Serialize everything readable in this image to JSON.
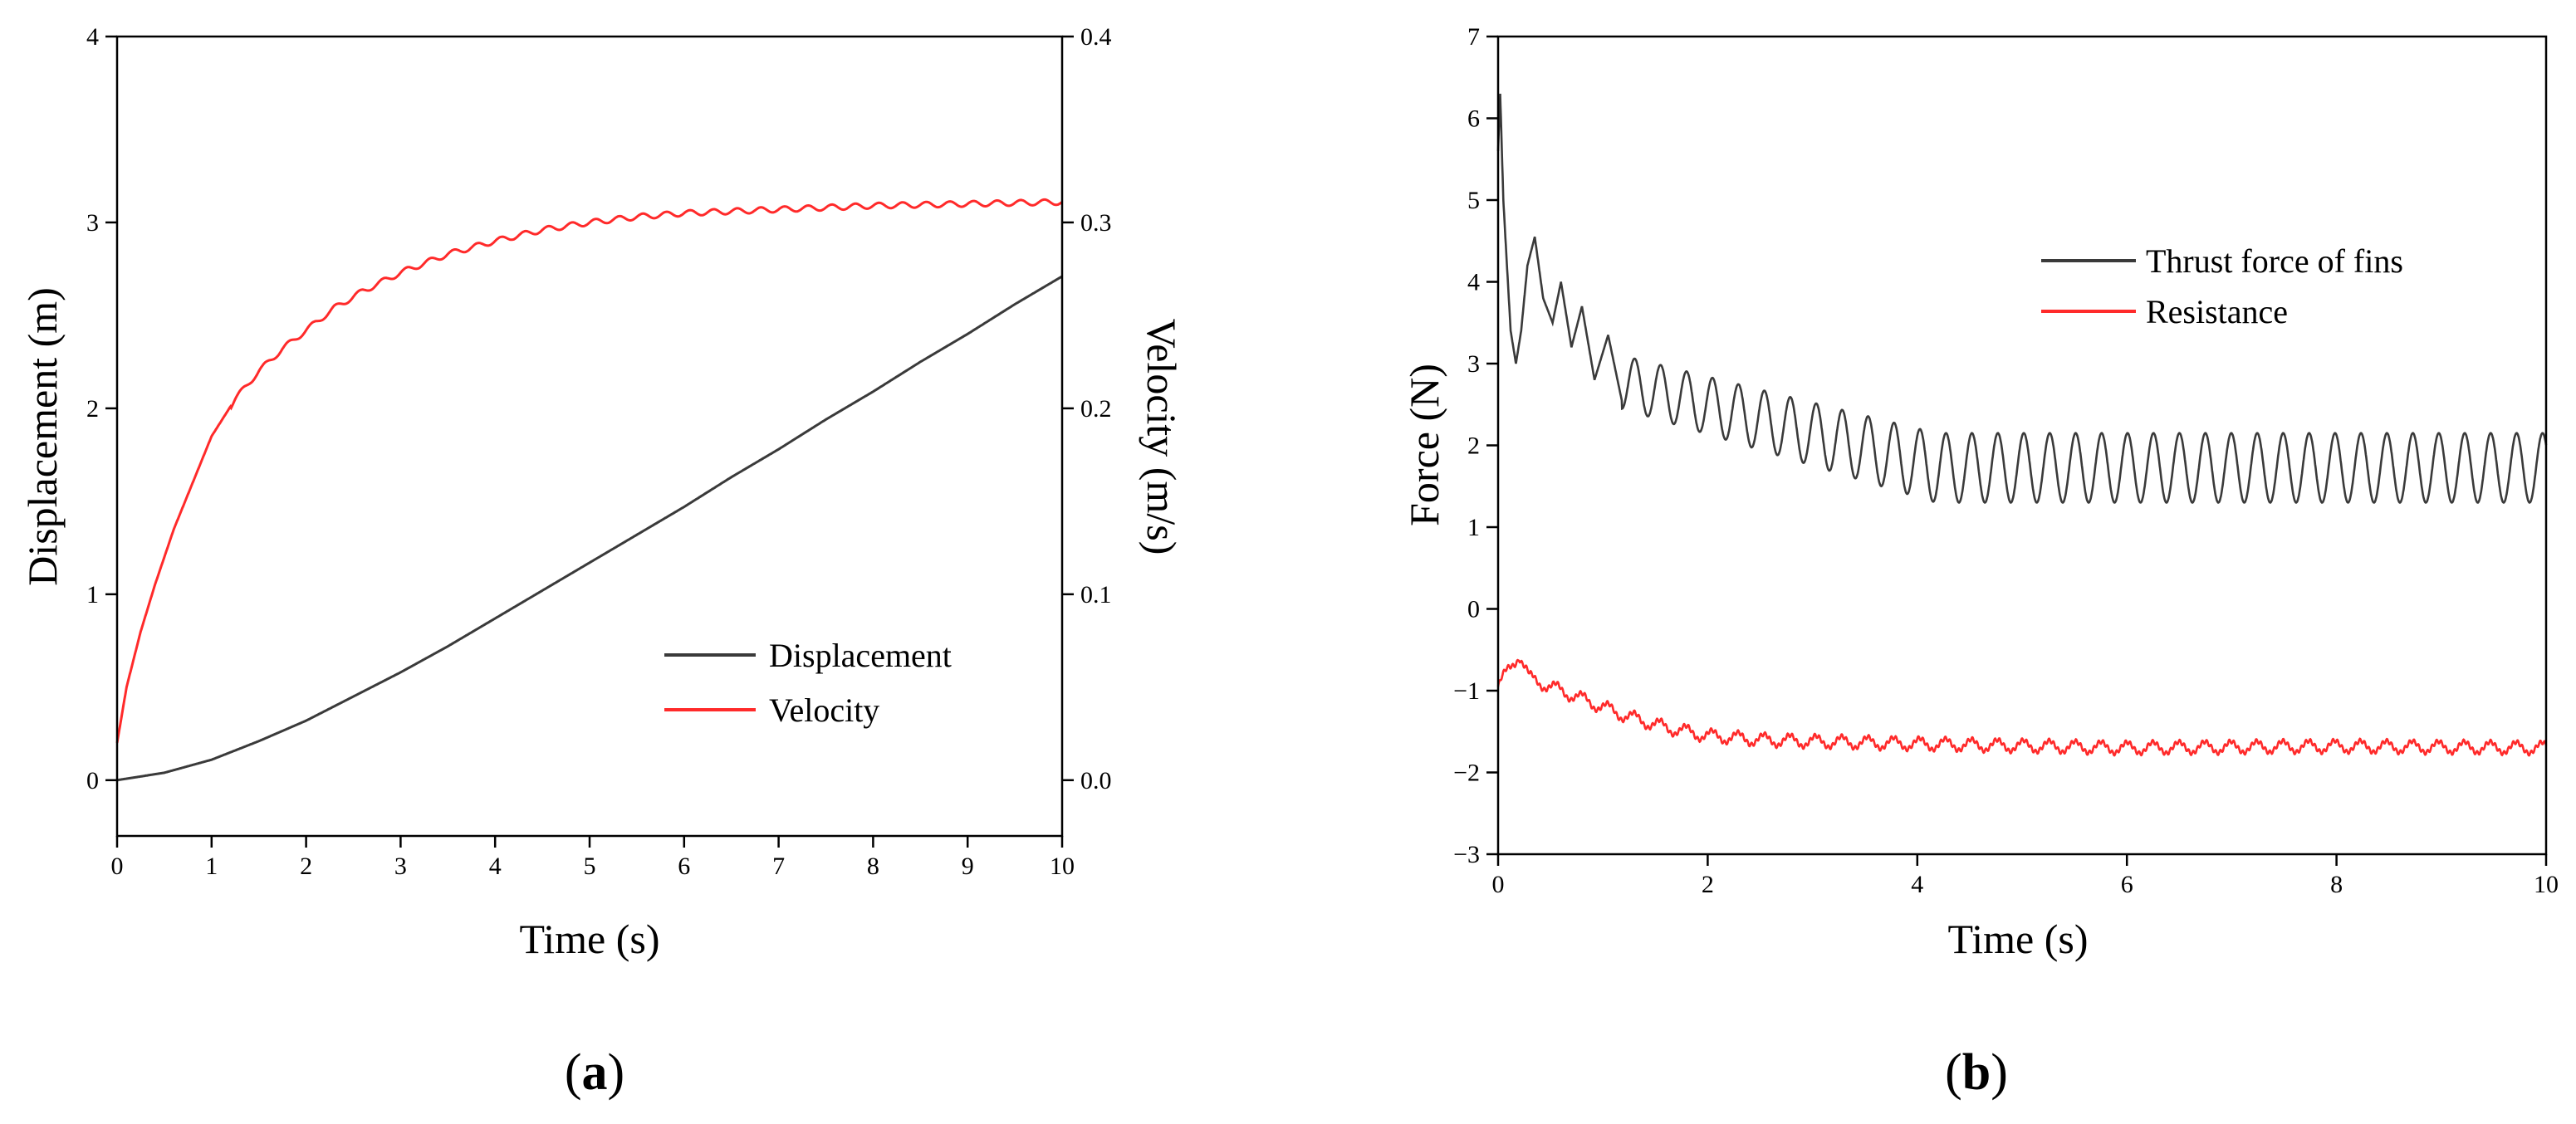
{
  "chart_data": [
    {
      "type": "line",
      "panel_label": "a",
      "xlabel": "Time (s)",
      "ylabel": "Displacement (m)",
      "ylabel_right": "Velocity (m/s)",
      "xlim": [
        0,
        10
      ],
      "ylim": [
        -0.3,
        4
      ],
      "ylim_right": [
        -0.03,
        0.4
      ],
      "xticks": [
        "0",
        "1",
        "2",
        "3",
        "4",
        "5",
        "6",
        "7",
        "8",
        "9",
        "10"
      ],
      "yticks": [
        "0",
        "1",
        "2",
        "3",
        "4"
      ],
      "yticks_right": [
        "0.0",
        "0.1",
        "0.2",
        "0.3",
        "0.4"
      ],
      "grid": false,
      "legend_position": "lower-right",
      "series": [
        {
          "name": "Displacement",
          "axis": "left",
          "color": "#3a3a3a",
          "x": [
            0,
            0.5,
            1,
            1.5,
            2,
            2.5,
            3,
            3.5,
            4,
            4.5,
            5,
            5.5,
            6,
            6.5,
            7,
            7.5,
            8,
            8.5,
            9,
            9.5,
            10
          ],
          "values": [
            0,
            0.04,
            0.11,
            0.21,
            0.32,
            0.45,
            0.58,
            0.72,
            0.87,
            1.02,
            1.17,
            1.32,
            1.47,
            1.63,
            1.78,
            1.94,
            2.09,
            2.25,
            2.4,
            2.56,
            2.71
          ]
        },
        {
          "name": "Velocity",
          "axis": "right",
          "color": "#ff2a2a",
          "x": [
            0,
            0.1,
            0.25,
            0.4,
            0.6,
            0.8,
            1,
            1.25,
            1.5,
            1.75,
            2,
            2.3,
            2.6,
            3,
            3.5,
            4,
            4.5,
            5,
            5.5,
            6,
            7,
            8,
            9,
            10
          ],
          "values": [
            0.02,
            0.05,
            0.08,
            0.105,
            0.135,
            0.16,
            0.185,
            0.205,
            0.22,
            0.232,
            0.242,
            0.254,
            0.263,
            0.273,
            0.283,
            0.29,
            0.296,
            0.3,
            0.303,
            0.305,
            0.307,
            0.309,
            0.31,
            0.311
          ],
          "oscillation": {
            "amplitude": 0.0015,
            "period_s": 0.25
          }
        }
      ]
    },
    {
      "type": "line",
      "panel_label": "b",
      "xlabel": "Time (s)",
      "ylabel": "Force (N)",
      "xlim": [
        0,
        10
      ],
      "ylim": [
        -3,
        7
      ],
      "xticks": [
        "0",
        "2",
        "4",
        "6",
        "8",
        "10"
      ],
      "yticks": [
        "−3",
        "−2",
        "−1",
        "0",
        "1",
        "2",
        "3",
        "4",
        "5",
        "6",
        "7"
      ],
      "grid": false,
      "legend_position": "top-right",
      "series": [
        {
          "name": "Thrust force of fins",
          "color": "#3a3a3a",
          "x": [
            0,
            0.02,
            0.05,
            0.08,
            0.12,
            0.17,
            0.22,
            0.28,
            0.35,
            0.43,
            0.52,
            0.6,
            0.7,
            0.8,
            0.92,
            1.05,
            1.18
          ],
          "values": [
            5.6,
            6.3,
            5.0,
            4.3,
            3.4,
            3.0,
            3.4,
            4.2,
            4.55,
            3.8,
            3.5,
            4.0,
            3.2,
            3.7,
            2.8,
            3.35,
            2.55
          ],
          "oscillation": {
            "period_s": 0.2475,
            "start_s": 1.18,
            "max_start": 3.1,
            "max_end": 2.15,
            "min_start": 2.45,
            "min_end": 1.3
          }
        },
        {
          "name": "Resistance",
          "color": "#ff2a2a",
          "x": [
            0,
            0.1,
            0.2,
            0.3,
            0.5,
            0.8,
            1.2,
            1.6,
            2,
            2.5,
            3,
            4,
            6,
            8,
            10
          ],
          "values": [
            -0.95,
            -0.75,
            -0.55,
            -0.85,
            -0.95,
            -1.1,
            -1.3,
            -1.45,
            -1.55,
            -1.6,
            -1.62,
            -1.65,
            -1.7,
            -1.68,
            -1.7
          ],
          "oscillation": {
            "amplitude": 0.07,
            "period_s": 0.2475
          }
        }
      ]
    }
  ]
}
